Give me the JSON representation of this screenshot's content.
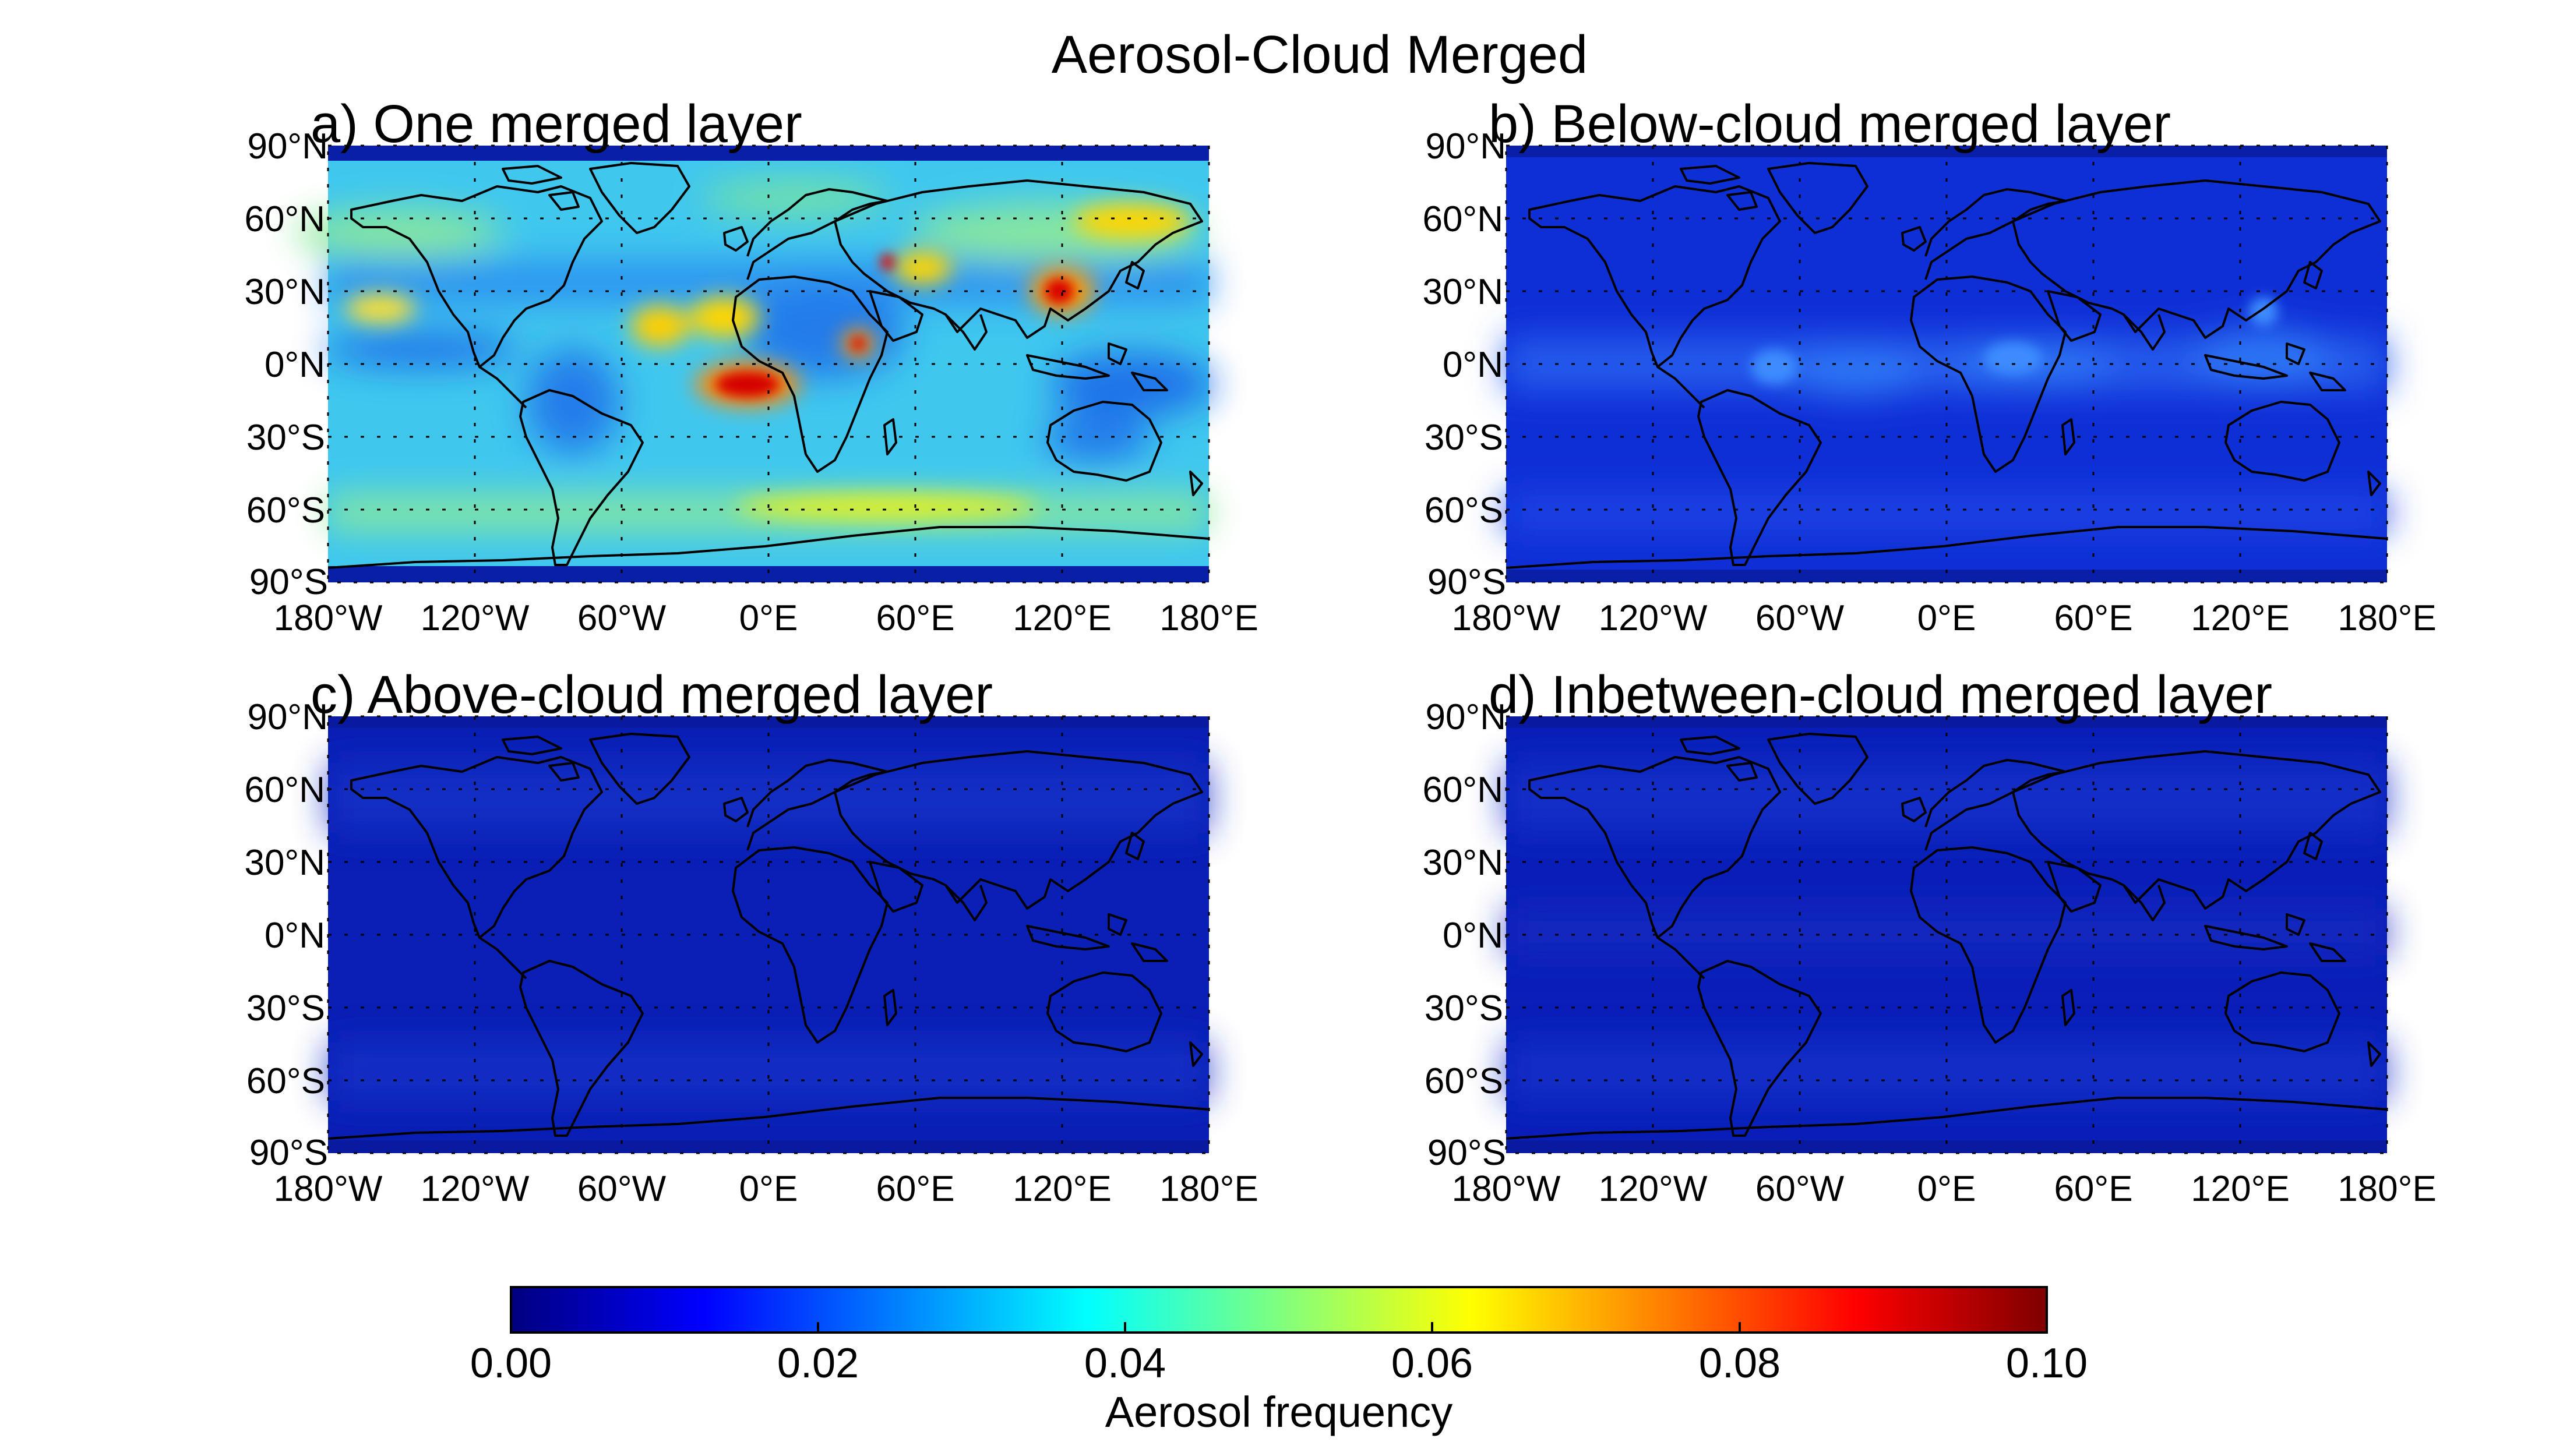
{
  "figure": {
    "title": "Aerosol-Cloud Merged"
  },
  "axes": {
    "lat_ticks": [
      "90°N",
      "60°N",
      "30°N",
      "0°N",
      "30°S",
      "60°S",
      "90°S"
    ],
    "lon_ticks": [
      "180°W",
      "120°W",
      "60°W",
      "0°E",
      "60°E",
      "120°E",
      "180°E"
    ],
    "lat_range": [
      -90,
      90
    ],
    "lon_range": [
      -180,
      180
    ],
    "grid": "dotted"
  },
  "panels": [
    {
      "id": "a",
      "title": "a) One merged layer",
      "level": "high",
      "background": "#40c7ee"
    },
    {
      "id": "b",
      "title": "b) Below-cloud merged layer",
      "level": "low",
      "background": "#0f2fd6"
    },
    {
      "id": "c",
      "title": "c) Above-cloud merged layer",
      "level": "very-low",
      "background": "#0a1fb5"
    },
    {
      "id": "d",
      "title": "d) Inbetween-cloud merged layer",
      "level": "very-low",
      "background": "#0a1fb8"
    }
  ],
  "colorbar": {
    "label": "Aerosol frequency",
    "min": 0.0,
    "max": 0.1,
    "ticks": [
      "0.00",
      "0.02",
      "0.04",
      "0.06",
      "0.08",
      "0.10"
    ],
    "colormap": "jet",
    "stops": [
      "#00007f",
      "#0000ff",
      "#007fff",
      "#00ffff",
      "#7fff7f",
      "#ffff00",
      "#ff7f00",
      "#ff0000",
      "#7f0000"
    ]
  }
}
